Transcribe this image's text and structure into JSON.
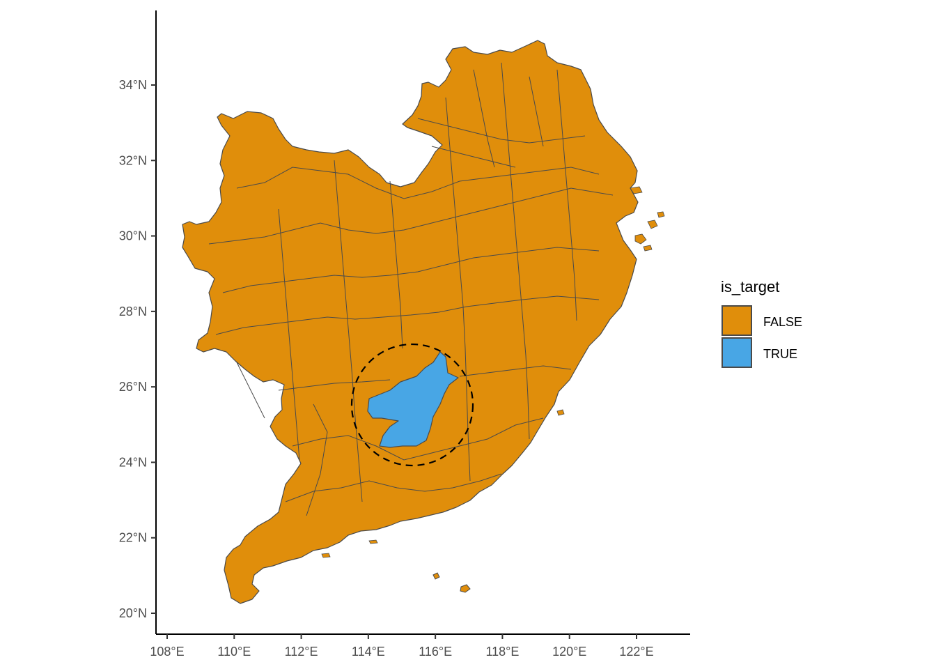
{
  "chart_data": {
    "type": "map",
    "region": "South-East China prefecture boundaries",
    "x_axis": {
      "ticks": [
        "108°E",
        "110°E",
        "112°E",
        "114°E",
        "116°E",
        "118°E",
        "120°E",
        "122°E"
      ],
      "range": [
        107.8,
        123.5
      ]
    },
    "y_axis": {
      "ticks": [
        "20°N",
        "22°N",
        "24°N",
        "26°N",
        "28°N",
        "30°N",
        "32°N",
        "34°N"
      ],
      "range": [
        19.5,
        35.9
      ]
    },
    "grid": false,
    "legend": {
      "title": "is_target",
      "position": "right",
      "entries": [
        {
          "label": "FALSE",
          "color": "#E08E0B"
        },
        {
          "label": "TRUE",
          "color": "#48A6E5"
        }
      ]
    },
    "highlight_circle": {
      "style": "dashed",
      "center_lon": 115.3,
      "center_lat": 25.7,
      "radius_deg": 1.8
    },
    "colors": {
      "fill_false": "#E08E0B",
      "fill_true": "#48A6E5",
      "boundary": "#4a4a4a"
    }
  }
}
